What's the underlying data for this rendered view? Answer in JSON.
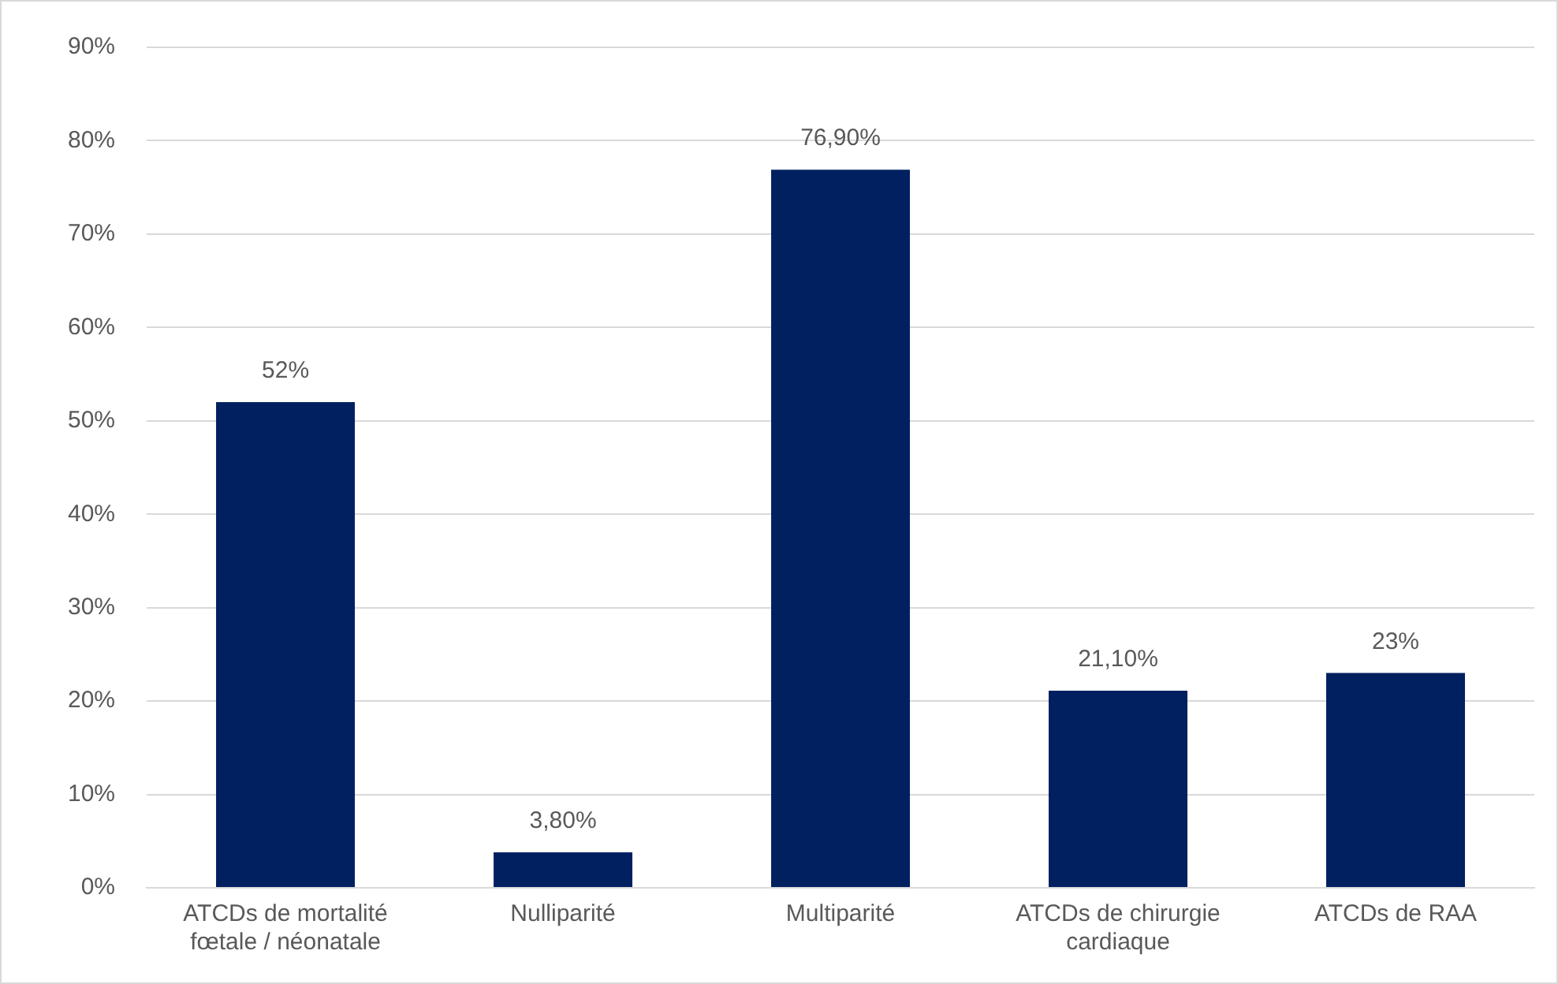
{
  "chart_data": {
    "type": "bar",
    "categories": [
      "ATCDs de mortalité fœtale / néonatale",
      "Nulliparité",
      "Multiparité",
      "ATCDs de chirurgie cardiaque",
      "ATCDs de RAA"
    ],
    "values": [
      52,
      3.8,
      76.9,
      21.1,
      23
    ],
    "value_labels": [
      "52%",
      "3,80%",
      "76,90%",
      "21,10%",
      "23%"
    ],
    "color": "#002060",
    "ylim": [
      0,
      90
    ],
    "yticks": [
      {
        "value": 0,
        "label": "0%"
      },
      {
        "value": 10,
        "label": "10%"
      },
      {
        "value": 20,
        "label": "20%"
      },
      {
        "value": 30,
        "label": "30%"
      },
      {
        "value": 40,
        "label": "40%"
      },
      {
        "value": 50,
        "label": "50%"
      },
      {
        "value": 60,
        "label": "60%"
      },
      {
        "value": 70,
        "label": "70%"
      },
      {
        "value": 80,
        "label": "80%"
      },
      {
        "value": 90,
        "label": "90%"
      }
    ],
    "grid": "y",
    "legend": false
  }
}
